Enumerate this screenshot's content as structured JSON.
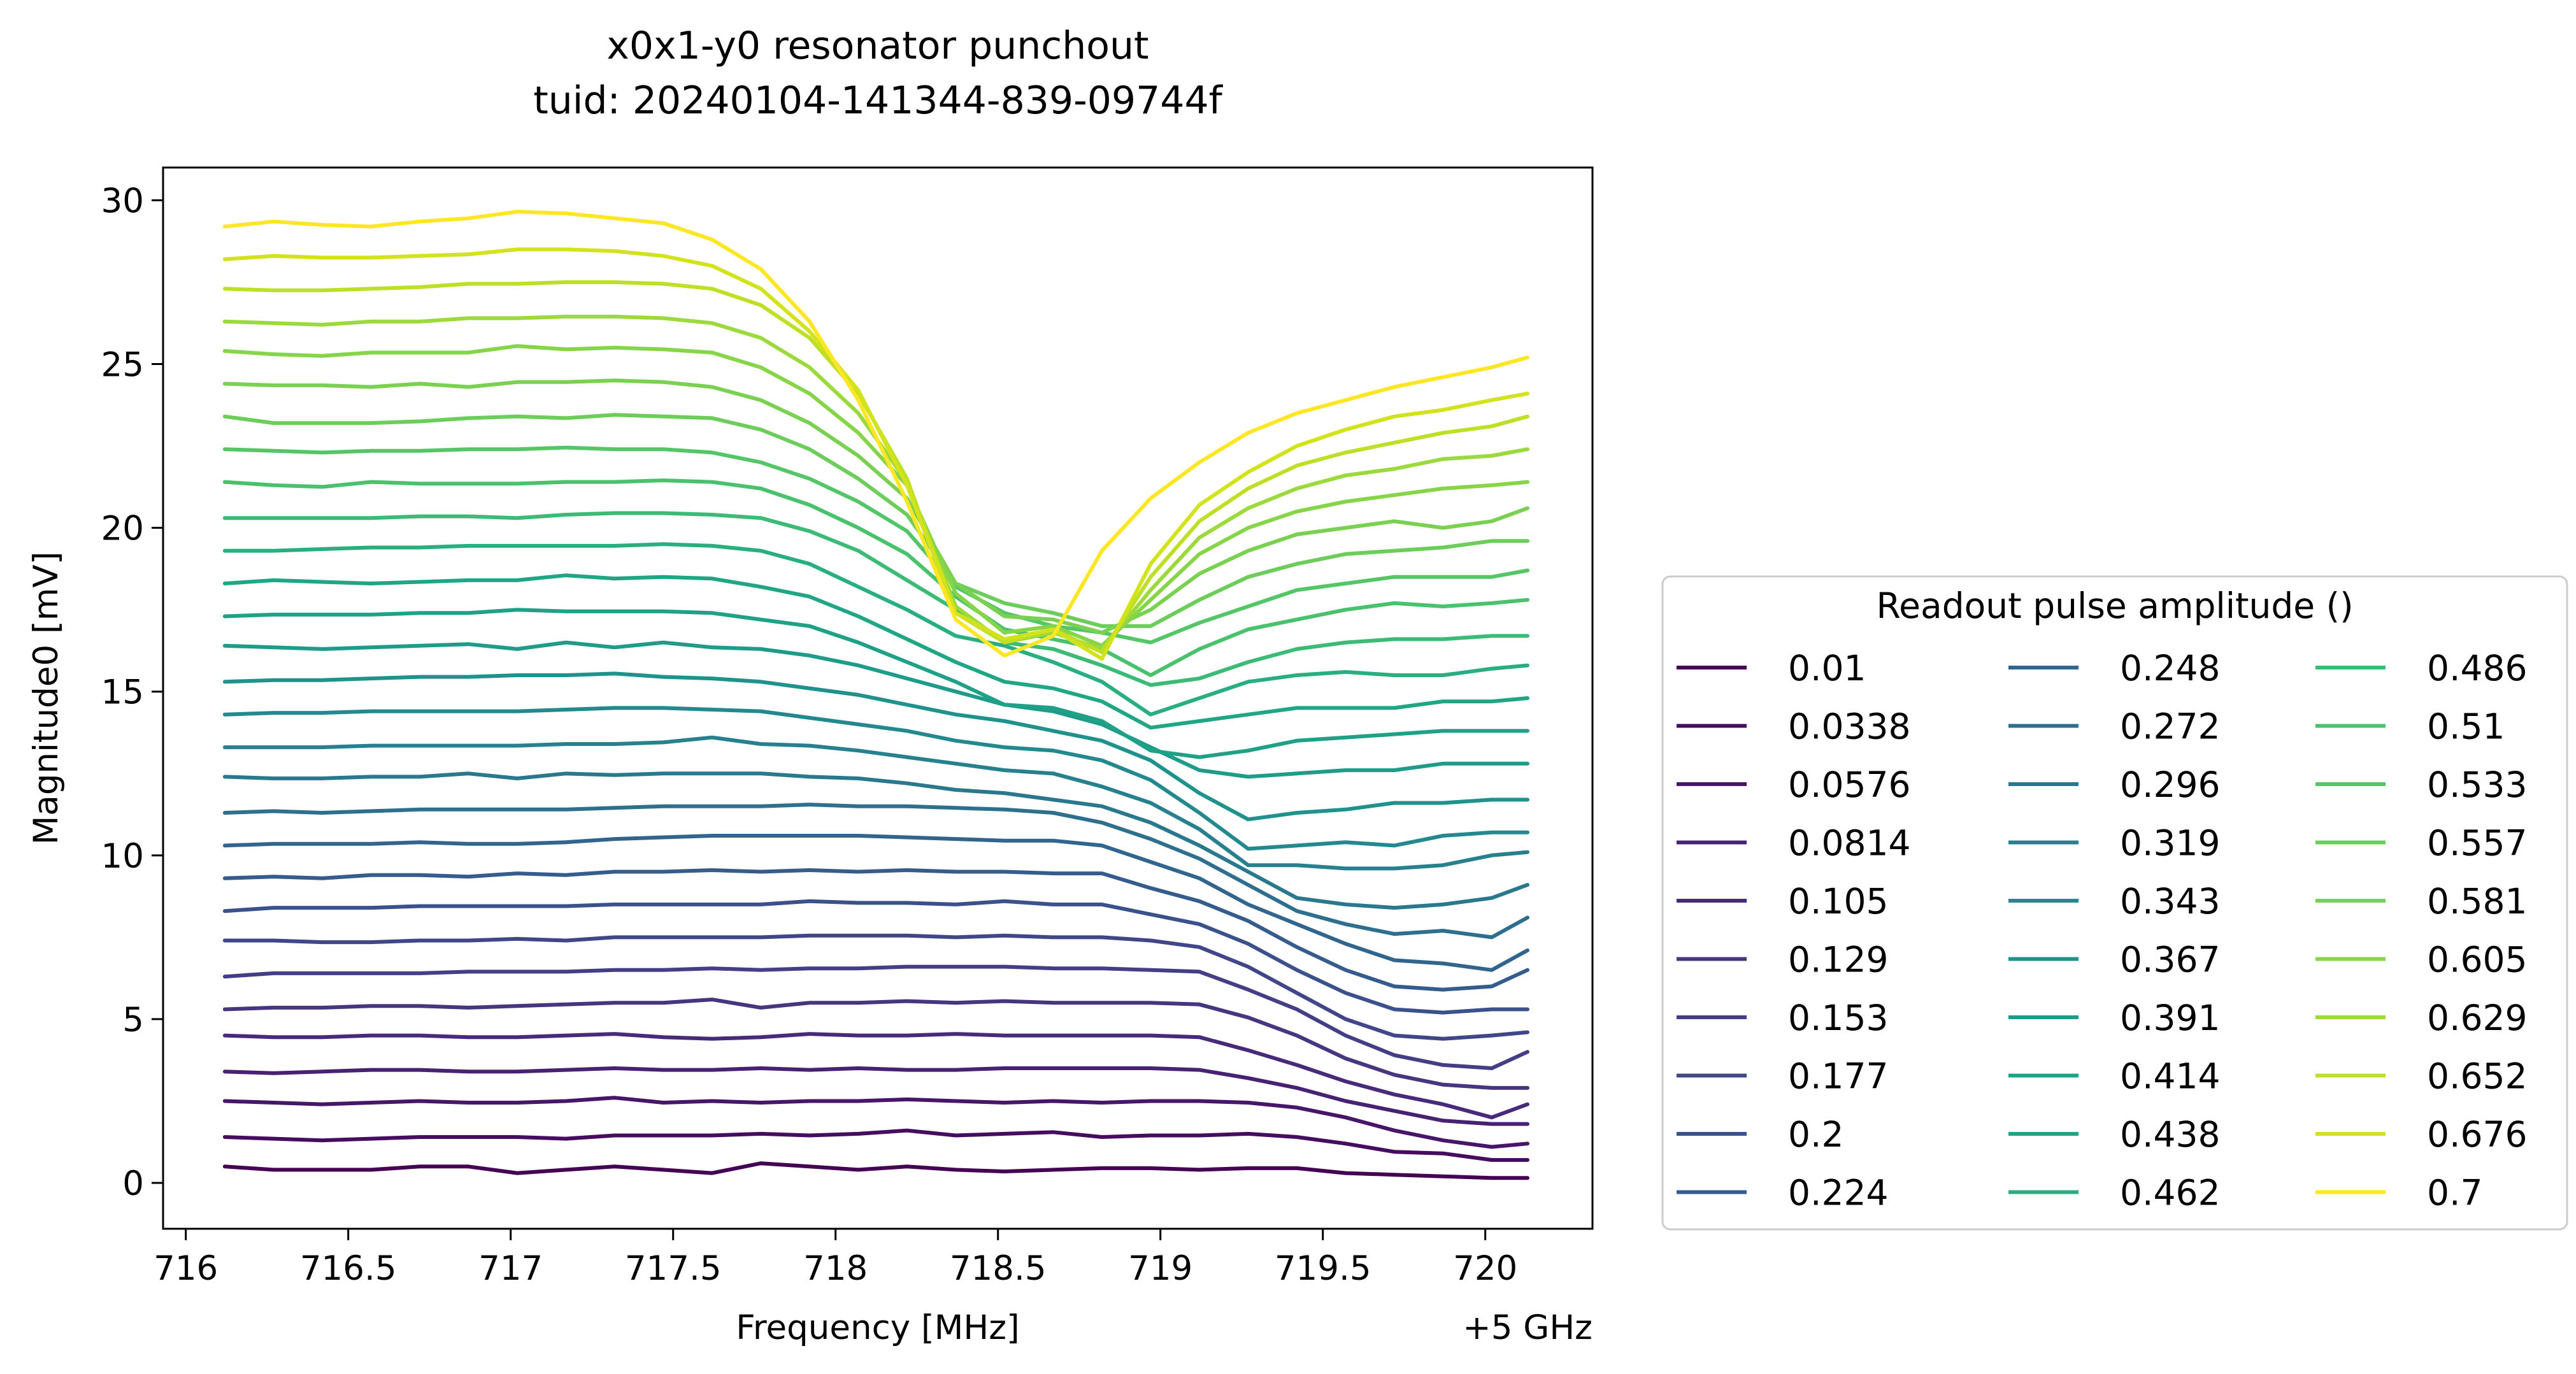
{
  "chart_data": {
    "type": "line",
    "title": "x0x1-y0 resonator punchout",
    "subtitle": "tuid: 20240104-141344-839-09744f",
    "xlabel": "Frequency [MHz]",
    "ylabel": "Magnitude0 [mV]",
    "x_offset_label": "+5 GHz",
    "xlim": [
      715.93,
      720.33
    ],
    "ylim": [
      -1.4,
      31.0
    ],
    "xticks": [
      716,
      716.5,
      717,
      717.5,
      718,
      718.5,
      719,
      719.5,
      720
    ],
    "xtick_labels": [
      "716",
      "716.5",
      "717",
      "717.5",
      "718",
      "718.5",
      "719",
      "719.5",
      "720"
    ],
    "yticks": [
      0,
      5,
      10,
      15,
      20,
      25,
      30
    ],
    "ytick_labels": [
      "0",
      "5",
      "10",
      "15",
      "20",
      "25",
      "30"
    ],
    "grid": false,
    "legend": {
      "title": "Readout pulse amplitude ()",
      "placement": "outside-right",
      "columns": 3
    },
    "x": [
      716.12,
      716.27,
      716.42,
      716.57,
      716.72,
      716.87,
      717.02,
      717.17,
      717.32,
      717.47,
      717.62,
      717.77,
      717.92,
      718.07,
      718.22,
      718.37,
      718.52,
      718.67,
      718.82,
      718.97,
      719.12,
      719.27,
      719.42,
      719.57,
      719.72,
      719.87,
      720.02,
      720.13
    ],
    "series": [
      {
        "name": "0.01",
        "color": "#440154",
        "values": [
          0.5,
          0.4,
          0.4,
          0.4,
          0.5,
          0.5,
          0.3,
          0.4,
          0.5,
          0.4,
          0.3,
          0.6,
          0.5,
          0.4,
          0.5,
          0.4,
          0.35,
          0.4,
          0.45,
          0.45,
          0.4,
          0.45,
          0.45,
          0.3,
          0.25,
          0.2,
          0.15,
          0.15
        ]
      },
      {
        "name": "0.0338",
        "color": "#460c5f",
        "values": [
          1.4,
          1.35,
          1.3,
          1.35,
          1.4,
          1.4,
          1.4,
          1.35,
          1.45,
          1.45,
          1.45,
          1.5,
          1.45,
          1.5,
          1.6,
          1.45,
          1.5,
          1.55,
          1.4,
          1.45,
          1.45,
          1.5,
          1.4,
          1.2,
          0.95,
          0.9,
          0.7,
          0.7
        ]
      },
      {
        "name": "0.0576",
        "color": "#471669",
        "values": [
          2.5,
          2.45,
          2.4,
          2.45,
          2.5,
          2.45,
          2.45,
          2.5,
          2.6,
          2.45,
          2.5,
          2.45,
          2.5,
          2.5,
          2.55,
          2.5,
          2.45,
          2.5,
          2.45,
          2.5,
          2.5,
          2.45,
          2.3,
          2.0,
          1.6,
          1.3,
          1.1,
          1.2
        ]
      },
      {
        "name": "0.0814",
        "color": "#482172",
        "values": [
          3.4,
          3.35,
          3.4,
          3.45,
          3.45,
          3.4,
          3.4,
          3.45,
          3.5,
          3.45,
          3.45,
          3.5,
          3.45,
          3.5,
          3.45,
          3.45,
          3.5,
          3.5,
          3.5,
          3.5,
          3.45,
          3.2,
          2.9,
          2.5,
          2.2,
          1.9,
          1.8,
          1.8
        ]
      },
      {
        "name": "0.105",
        "color": "#472b7a",
        "values": [
          4.5,
          4.45,
          4.45,
          4.5,
          4.5,
          4.45,
          4.45,
          4.5,
          4.55,
          4.45,
          4.4,
          4.45,
          4.55,
          4.5,
          4.5,
          4.55,
          4.5,
          4.5,
          4.5,
          4.5,
          4.45,
          4.05,
          3.6,
          3.1,
          2.7,
          2.4,
          2.0,
          2.4
        ]
      },
      {
        "name": "0.129",
        "color": "#46357f",
        "values": [
          5.3,
          5.35,
          5.35,
          5.4,
          5.4,
          5.35,
          5.4,
          5.45,
          5.5,
          5.5,
          5.6,
          5.35,
          5.5,
          5.5,
          5.55,
          5.5,
          5.55,
          5.5,
          5.5,
          5.5,
          5.45,
          5.05,
          4.5,
          3.8,
          3.3,
          3.0,
          2.9,
          2.9
        ]
      },
      {
        "name": "0.153",
        "color": "#433e85",
        "values": [
          6.3,
          6.4,
          6.4,
          6.4,
          6.4,
          6.45,
          6.45,
          6.45,
          6.5,
          6.5,
          6.55,
          6.5,
          6.55,
          6.55,
          6.6,
          6.6,
          6.6,
          6.55,
          6.55,
          6.5,
          6.45,
          5.9,
          5.3,
          4.5,
          3.9,
          3.6,
          3.5,
          4.0
        ]
      },
      {
        "name": "0.177",
        "color": "#404688",
        "values": [
          7.4,
          7.4,
          7.35,
          7.35,
          7.4,
          7.4,
          7.45,
          7.4,
          7.5,
          7.5,
          7.5,
          7.5,
          7.55,
          7.55,
          7.55,
          7.5,
          7.55,
          7.5,
          7.5,
          7.4,
          7.2,
          6.6,
          5.8,
          5.0,
          4.5,
          4.4,
          4.5,
          4.6
        ]
      },
      {
        "name": "0.2",
        "color": "#3b518b",
        "values": [
          8.3,
          8.4,
          8.4,
          8.4,
          8.45,
          8.45,
          8.45,
          8.45,
          8.5,
          8.5,
          8.5,
          8.5,
          8.6,
          8.55,
          8.55,
          8.5,
          8.6,
          8.5,
          8.5,
          8.2,
          7.9,
          7.3,
          6.5,
          5.8,
          5.3,
          5.2,
          5.3,
          5.3
        ]
      },
      {
        "name": "0.224",
        "color": "#365c8d",
        "values": [
          9.3,
          9.35,
          9.3,
          9.4,
          9.4,
          9.35,
          9.45,
          9.4,
          9.5,
          9.5,
          9.55,
          9.5,
          9.55,
          9.5,
          9.55,
          9.5,
          9.5,
          9.45,
          9.45,
          9.0,
          8.6,
          8.0,
          7.2,
          6.5,
          6.0,
          5.9,
          6.0,
          6.5
        ]
      },
      {
        "name": "0.248",
        "color": "#32658e",
        "values": [
          10.3,
          10.35,
          10.35,
          10.35,
          10.4,
          10.35,
          10.35,
          10.4,
          10.5,
          10.55,
          10.6,
          10.6,
          10.6,
          10.6,
          10.55,
          10.5,
          10.45,
          10.45,
          10.3,
          9.8,
          9.3,
          8.5,
          7.9,
          7.3,
          6.8,
          6.7,
          6.5,
          7.1
        ]
      },
      {
        "name": "0.272",
        "color": "#2e6f8e",
        "values": [
          11.3,
          11.35,
          11.3,
          11.35,
          11.4,
          11.4,
          11.4,
          11.4,
          11.45,
          11.5,
          11.5,
          11.5,
          11.55,
          11.5,
          11.5,
          11.45,
          11.4,
          11.3,
          11.0,
          10.5,
          9.9,
          9.1,
          8.3,
          7.9,
          7.6,
          7.7,
          7.5,
          8.1
        ]
      },
      {
        "name": "0.296",
        "color": "#2a788e",
        "values": [
          12.4,
          12.35,
          12.35,
          12.4,
          12.4,
          12.5,
          12.35,
          12.5,
          12.45,
          12.5,
          12.5,
          12.5,
          12.4,
          12.35,
          12.2,
          12.0,
          11.9,
          11.7,
          11.5,
          11.0,
          10.3,
          9.5,
          8.7,
          8.5,
          8.4,
          8.5,
          8.7,
          9.1
        ]
      },
      {
        "name": "0.319",
        "color": "#27808e",
        "values": [
          13.3,
          13.3,
          13.3,
          13.35,
          13.35,
          13.35,
          13.35,
          13.4,
          13.4,
          13.45,
          13.6,
          13.4,
          13.35,
          13.2,
          13.0,
          12.8,
          12.6,
          12.5,
          12.1,
          11.6,
          10.8,
          9.7,
          9.7,
          9.6,
          9.6,
          9.7,
          10.0,
          10.1
        ]
      },
      {
        "name": "0.343",
        "color": "#23898e",
        "values": [
          14.3,
          14.35,
          14.35,
          14.4,
          14.4,
          14.4,
          14.4,
          14.45,
          14.5,
          14.5,
          14.45,
          14.4,
          14.2,
          14.0,
          13.8,
          13.5,
          13.3,
          13.2,
          12.9,
          12.3,
          11.3,
          10.2,
          10.3,
          10.4,
          10.3,
          10.6,
          10.7,
          10.7
        ]
      },
      {
        "name": "0.367",
        "color": "#1f928c",
        "values": [
          15.3,
          15.35,
          15.35,
          15.4,
          15.45,
          15.45,
          15.5,
          15.5,
          15.55,
          15.45,
          15.4,
          15.3,
          15.1,
          14.9,
          14.6,
          14.3,
          14.1,
          13.8,
          13.5,
          12.9,
          11.9,
          11.1,
          11.3,
          11.4,
          11.6,
          11.6,
          11.7,
          11.7
        ]
      },
      {
        "name": "0.391",
        "color": "#1e9c89",
        "values": [
          16.4,
          16.35,
          16.3,
          16.35,
          16.4,
          16.45,
          16.3,
          16.5,
          16.35,
          16.5,
          16.35,
          16.3,
          16.1,
          15.8,
          15.4,
          15.0,
          14.6,
          14.4,
          14.0,
          13.3,
          12.6,
          12.4,
          12.5,
          12.6,
          12.6,
          12.8,
          12.8,
          12.8
        ]
      },
      {
        "name": "0.414",
        "color": "#1fa188",
        "values": [
          17.3,
          17.35,
          17.35,
          17.35,
          17.4,
          17.4,
          17.5,
          17.45,
          17.45,
          17.45,
          17.4,
          17.2,
          17.0,
          16.5,
          15.9,
          15.3,
          14.6,
          14.5,
          14.1,
          13.2,
          13.0,
          13.2,
          13.5,
          13.6,
          13.7,
          13.8,
          13.8,
          13.8
        ]
      },
      {
        "name": "0.438",
        "color": "#21a685",
        "values": [
          18.3,
          18.4,
          18.35,
          18.3,
          18.35,
          18.4,
          18.4,
          18.55,
          18.45,
          18.5,
          18.45,
          18.2,
          17.9,
          17.3,
          16.6,
          15.9,
          15.3,
          15.1,
          14.7,
          13.9,
          14.1,
          14.3,
          14.5,
          14.5,
          14.5,
          14.7,
          14.7,
          14.8
        ]
      },
      {
        "name": "0.462",
        "color": "#29af7f",
        "values": [
          19.3,
          19.3,
          19.35,
          19.4,
          19.4,
          19.45,
          19.45,
          19.45,
          19.45,
          19.5,
          19.45,
          19.3,
          18.9,
          18.2,
          17.5,
          16.7,
          16.4,
          15.9,
          15.3,
          14.3,
          14.8,
          15.3,
          15.5,
          15.6,
          15.5,
          15.5,
          15.7,
          15.8
        ]
      },
      {
        "name": "0.486",
        "color": "#3bbb75",
        "values": [
          20.3,
          20.3,
          20.3,
          20.3,
          20.35,
          20.35,
          20.3,
          20.4,
          20.45,
          20.45,
          20.4,
          20.3,
          19.9,
          19.3,
          18.4,
          17.5,
          16.5,
          16.3,
          15.8,
          15.2,
          15.4,
          15.9,
          16.3,
          16.5,
          16.6,
          16.6,
          16.7,
          16.7
        ]
      },
      {
        "name": "0.51",
        "color": "#4ac16d",
        "values": [
          21.4,
          21.3,
          21.25,
          21.4,
          21.35,
          21.35,
          21.35,
          21.4,
          21.4,
          21.45,
          21.4,
          21.2,
          20.7,
          20.0,
          19.2,
          17.9,
          16.9,
          16.6,
          16.3,
          15.5,
          16.3,
          16.9,
          17.2,
          17.5,
          17.7,
          17.6,
          17.7,
          17.8
        ]
      },
      {
        "name": "0.533",
        "color": "#55c667",
        "values": [
          22.4,
          22.35,
          22.3,
          22.35,
          22.35,
          22.4,
          22.4,
          22.45,
          22.4,
          22.4,
          22.3,
          22.0,
          21.5,
          20.8,
          19.9,
          18.2,
          17.4,
          17.0,
          16.8,
          16.5,
          17.1,
          17.6,
          18.1,
          18.3,
          18.5,
          18.5,
          18.5,
          18.7
        ]
      },
      {
        "name": "0.557",
        "color": "#6ccd5a",
        "values": [
          23.4,
          23.2,
          23.2,
          23.2,
          23.25,
          23.35,
          23.4,
          23.35,
          23.45,
          23.4,
          23.35,
          23.0,
          22.4,
          21.5,
          20.4,
          18.3,
          17.7,
          17.4,
          17.0,
          17.0,
          17.8,
          18.5,
          18.9,
          19.2,
          19.3,
          19.4,
          19.6,
          19.6
        ]
      },
      {
        "name": "0.581",
        "color": "#7ad151",
        "values": [
          24.4,
          24.35,
          24.35,
          24.3,
          24.4,
          24.3,
          24.45,
          24.45,
          24.5,
          24.45,
          24.3,
          23.9,
          23.2,
          22.2,
          20.9,
          18.3,
          17.3,
          17.2,
          16.8,
          17.5,
          18.6,
          19.3,
          19.8,
          20.0,
          20.2,
          20.0,
          20.2,
          20.6
        ]
      },
      {
        "name": "0.605",
        "color": "#86d549",
        "values": [
          25.4,
          25.3,
          25.25,
          25.35,
          25.35,
          25.35,
          25.55,
          25.45,
          25.5,
          25.45,
          25.35,
          24.9,
          24.1,
          22.9,
          21.3,
          18.0,
          16.8,
          17.0,
          16.4,
          17.8,
          19.2,
          20.0,
          20.5,
          20.8,
          21.0,
          21.2,
          21.3,
          21.4
        ]
      },
      {
        "name": "0.629",
        "color": "#9bd93c",
        "values": [
          26.3,
          26.25,
          26.2,
          26.3,
          26.3,
          26.4,
          26.4,
          26.45,
          26.45,
          26.4,
          26.25,
          25.8,
          24.9,
          23.5,
          21.4,
          17.6,
          16.5,
          16.8,
          16.3,
          18.1,
          19.7,
          20.6,
          21.2,
          21.6,
          21.8,
          22.1,
          22.2,
          22.4
        ]
      },
      {
        "name": "0.652",
        "color": "#bddf26",
        "values": [
          27.3,
          27.25,
          27.25,
          27.3,
          27.35,
          27.45,
          27.45,
          27.5,
          27.5,
          27.45,
          27.3,
          26.8,
          25.8,
          24.1,
          21.5,
          17.4,
          16.5,
          16.9,
          16.2,
          18.5,
          20.2,
          21.2,
          21.9,
          22.3,
          22.6,
          22.9,
          23.1,
          23.4
        ]
      },
      {
        "name": "0.676",
        "color": "#d2e21b",
        "values": [
          28.2,
          28.3,
          28.25,
          28.25,
          28.3,
          28.35,
          28.5,
          28.5,
          28.45,
          28.3,
          28.0,
          27.3,
          26.0,
          24.2,
          21.3,
          17.4,
          16.6,
          16.9,
          16.0,
          18.9,
          20.7,
          21.7,
          22.5,
          23.0,
          23.4,
          23.6,
          23.9,
          24.1
        ]
      },
      {
        "name": "0.7",
        "color": "#fde725",
        "values": [
          29.2,
          29.35,
          29.25,
          29.2,
          29.35,
          29.45,
          29.65,
          29.6,
          29.45,
          29.3,
          28.8,
          27.9,
          26.3,
          23.9,
          20.8,
          17.2,
          16.1,
          16.7,
          19.3,
          20.9,
          22.0,
          22.9,
          23.5,
          23.9,
          24.3,
          24.6,
          24.9,
          25.2
        ]
      }
    ]
  }
}
